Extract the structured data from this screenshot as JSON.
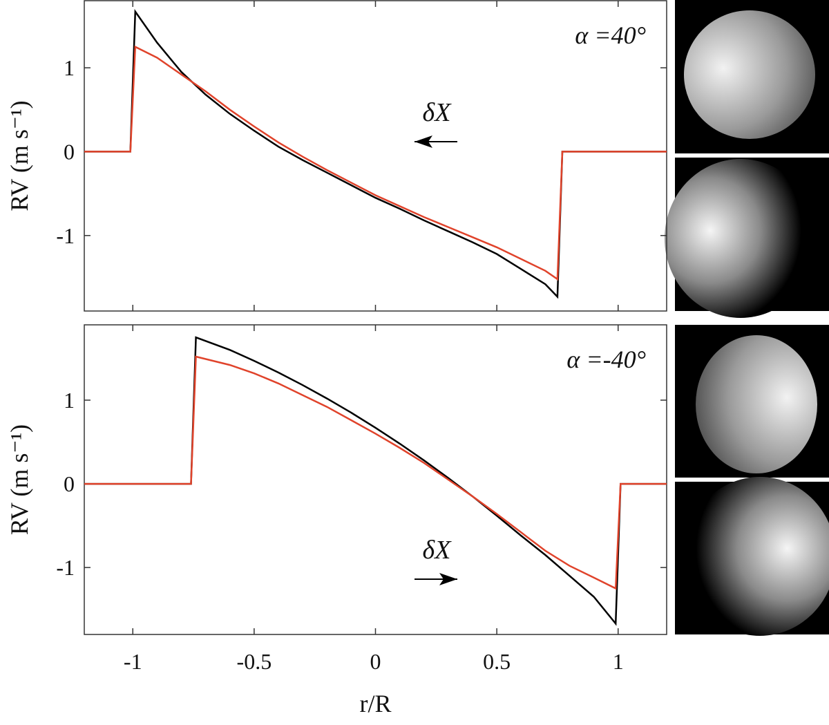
{
  "chart_data": [
    {
      "type": "line",
      "ylabel": "RV (m s⁻¹)",
      "annotation": "α =40°",
      "arrow_label": "δX",
      "arrow_direction": "left",
      "xlim": [
        -1.2,
        1.2
      ],
      "xticks": [
        -1,
        -0.5,
        0,
        0.5,
        1
      ],
      "ylim": [
        -1.9,
        1.8
      ],
      "yticks": [
        -1,
        0,
        1
      ],
      "series": [
        {
          "color": "#000000",
          "x": [
            -1.2,
            -1.01,
            -0.99,
            -0.9,
            -0.8,
            -0.7,
            -0.6,
            -0.5,
            -0.4,
            -0.3,
            -0.2,
            -0.1,
            0,
            0.1,
            0.2,
            0.3,
            0.4,
            0.5,
            0.6,
            0.7,
            0.75,
            0.77,
            1.2
          ],
          "values": [
            0,
            0,
            1.67,
            1.3,
            0.95,
            0.68,
            0.45,
            0.25,
            0.06,
            -0.1,
            -0.25,
            -0.4,
            -0.55,
            -0.68,
            -0.82,
            -0.95,
            -1.08,
            -1.22,
            -1.4,
            -1.58,
            -1.73,
            0,
            0
          ]
        },
        {
          "color": "#e0432b",
          "x": [
            -1.2,
            -1.01,
            -0.99,
            -0.9,
            -0.8,
            -0.7,
            -0.6,
            -0.5,
            -0.4,
            -0.3,
            -0.2,
            -0.1,
            0,
            0.1,
            0.2,
            0.3,
            0.4,
            0.5,
            0.6,
            0.7,
            0.75,
            0.77,
            1.2
          ],
          "values": [
            0,
            0,
            1.25,
            1.12,
            0.92,
            0.72,
            0.5,
            0.3,
            0.11,
            -0.06,
            -0.22,
            -0.37,
            -0.52,
            -0.65,
            -0.78,
            -0.9,
            -1.02,
            -1.14,
            -1.28,
            -1.42,
            -1.52,
            0,
            0
          ]
        }
      ]
    },
    {
      "type": "line",
      "ylabel": "RV (m s⁻¹)",
      "xlabel": "r/R",
      "annotation": "α =-40°",
      "arrow_label": "δX",
      "arrow_direction": "right",
      "xlim": [
        -1.2,
        1.2
      ],
      "xticks": [
        -1,
        -0.5,
        0,
        0.5,
        1
      ],
      "ylim": [
        -1.8,
        1.9
      ],
      "yticks": [
        -1,
        0,
        1
      ],
      "series": [
        {
          "color": "#000000",
          "x": [
            -1.2,
            -0.76,
            -0.74,
            -0.6,
            -0.5,
            -0.4,
            -0.3,
            -0.2,
            -0.1,
            0,
            0.1,
            0.2,
            0.3,
            0.4,
            0.5,
            0.6,
            0.7,
            0.8,
            0.9,
            0.99,
            1.01,
            1.2
          ],
          "values": [
            0,
            0,
            1.75,
            1.6,
            1.47,
            1.33,
            1.18,
            1.02,
            0.85,
            0.67,
            0.48,
            0.28,
            0.07,
            -0.15,
            -0.38,
            -0.62,
            -0.85,
            -1.1,
            -1.35,
            -1.67,
            0,
            0
          ]
        },
        {
          "color": "#e0432b",
          "x": [
            -1.2,
            -0.76,
            -0.74,
            -0.6,
            -0.5,
            -0.4,
            -0.3,
            -0.2,
            -0.1,
            0,
            0.1,
            0.2,
            0.3,
            0.4,
            0.5,
            0.6,
            0.7,
            0.8,
            0.9,
            0.99,
            1.01,
            1.2
          ],
          "values": [
            0,
            0,
            1.52,
            1.42,
            1.32,
            1.2,
            1.06,
            0.92,
            0.76,
            0.6,
            0.43,
            0.25,
            0.05,
            -0.15,
            -0.36,
            -0.58,
            -0.8,
            -0.98,
            -1.12,
            -1.25,
            0,
            0
          ]
        }
      ]
    }
  ]
}
